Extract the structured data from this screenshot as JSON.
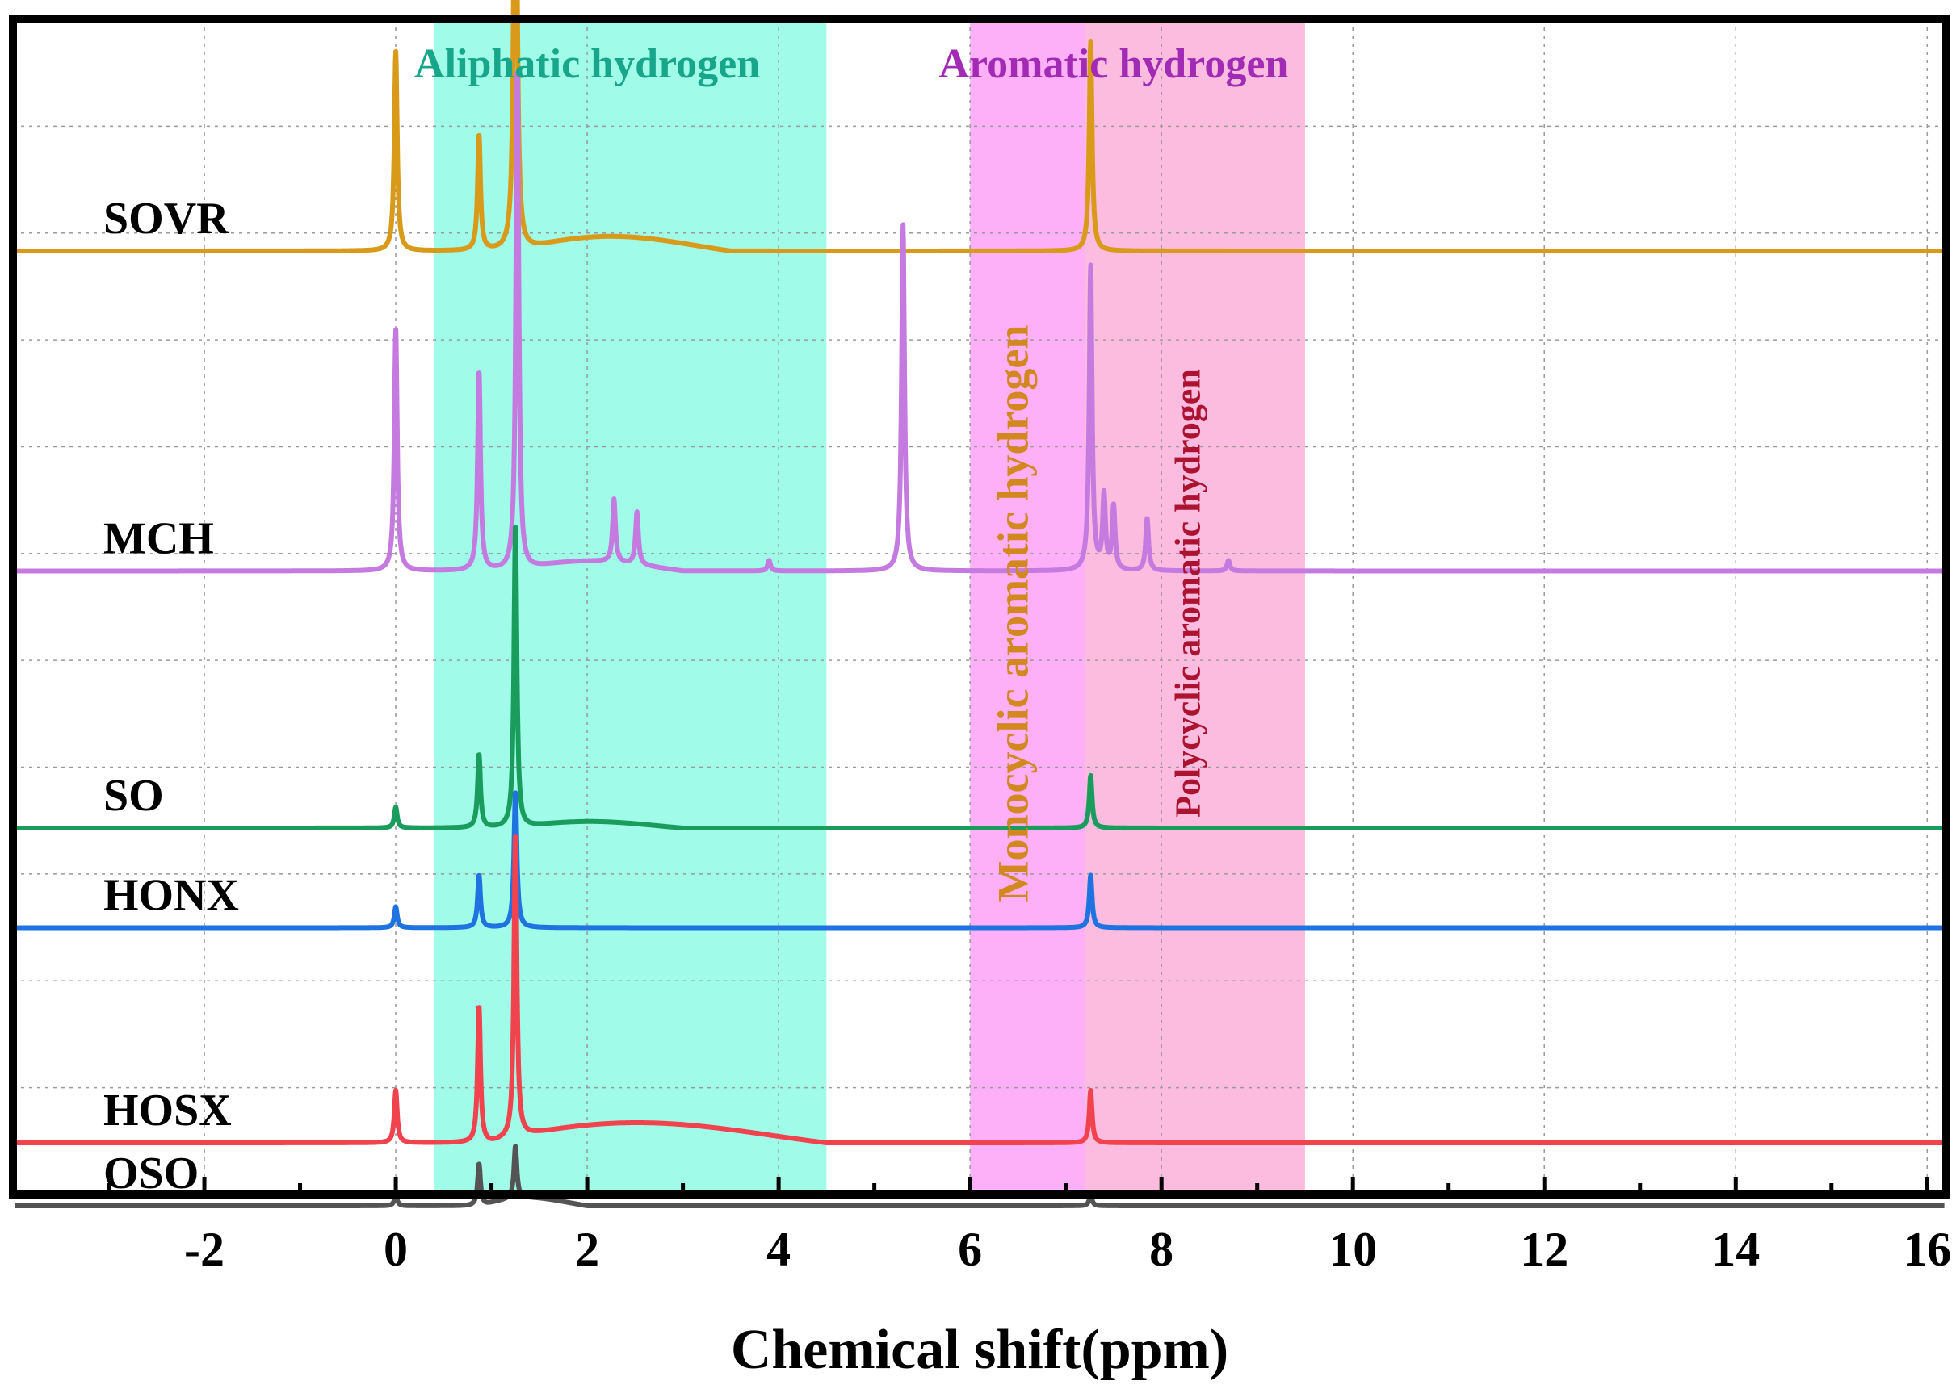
{
  "chart_data": {
    "type": "line",
    "title": "",
    "xlabel": "Chemical shift(ppm)",
    "ylabel": "",
    "xlim": [
      -4.0,
      16.2
    ],
    "x_ticks": [
      -2,
      0,
      2,
      4,
      6,
      8,
      10,
      12,
      14,
      16
    ],
    "x_minor_ticks": [
      -3,
      -1,
      1,
      3,
      5,
      7,
      9,
      11,
      13,
      15
    ],
    "grid": true,
    "regions": [
      {
        "name": "aliphatic",
        "label": "Aliphatic hydrogen",
        "from": 0.4,
        "to": 4.5,
        "fill": "#a0fbe8",
        "label_color": "#17a68a",
        "label_x": 2.0,
        "orientation": "horizontal"
      },
      {
        "name": "monocyclic",
        "label": "Monocyclic aromatic hydrogen",
        "from": 6.0,
        "to": 7.2,
        "fill": "#fdb0f8",
        "label_color": "#d2881e",
        "label_x": 6.6,
        "orientation": "vertical"
      },
      {
        "name": "polycyclic",
        "label": "Polycyclic aromatic hydrogen",
        "from": 7.2,
        "to": 9.5,
        "fill": "#fcbce0",
        "label_color": "#ac1330",
        "label_x": 8.4,
        "orientation": "vertical"
      }
    ],
    "header_labels": [
      {
        "name": "aromatic",
        "label": "Aromatic hydrogen",
        "x": 7.5,
        "color": "#a22bb5"
      }
    ],
    "series": [
      {
        "name": "SOVR",
        "color": "#d99a1a",
        "baseline": 0.78,
        "peaks": [
          {
            "x": 0.0,
            "h": 0.19
          },
          {
            "x": 0.87,
            "h": 0.11
          },
          {
            "x": 1.25,
            "h": 0.55
          },
          {
            "x": 7.26,
            "h": 0.2
          }
        ],
        "bumps": [
          {
            "x1": 1.3,
            "x2": 3.5,
            "h": 0.018
          }
        ]
      },
      {
        "name": "MCH",
        "color": "#c57ae0",
        "baseline": 0.475,
        "peaks": [
          {
            "x": 0.0,
            "h": 0.23
          },
          {
            "x": 0.87,
            "h": 0.19
          },
          {
            "x": 1.27,
            "h": 0.48
          },
          {
            "x": 2.28,
            "h": 0.06
          },
          {
            "x": 2.52,
            "h": 0.05
          },
          {
            "x": 5.3,
            "h": 0.33
          },
          {
            "x": 7.26,
            "h": 0.29
          },
          {
            "x": 7.4,
            "h": 0.07
          },
          {
            "x": 7.5,
            "h": 0.06
          },
          {
            "x": 7.85,
            "h": 0.05
          },
          {
            "x": 3.9,
            "h": 0.01
          },
          {
            "x": 8.7,
            "h": 0.01
          }
        ],
        "bumps": [
          {
            "x1": 1.3,
            "x2": 3.0,
            "h": 0.012
          }
        ]
      },
      {
        "name": "SO",
        "color": "#1a9c5c",
        "baseline": 0.23,
        "peaks": [
          {
            "x": 0.0,
            "h": 0.02
          },
          {
            "x": 0.87,
            "h": 0.07
          },
          {
            "x": 1.25,
            "h": 0.29
          },
          {
            "x": 7.26,
            "h": 0.05
          }
        ],
        "bumps": [
          {
            "x1": 1.3,
            "x2": 3.0,
            "h": 0.008
          }
        ]
      },
      {
        "name": "HONX",
        "color": "#1e73e0",
        "baseline": 0.135,
        "peaks": [
          {
            "x": 0.0,
            "h": 0.02
          },
          {
            "x": 0.87,
            "h": 0.05
          },
          {
            "x": 1.25,
            "h": 0.13
          },
          {
            "x": 7.26,
            "h": 0.05
          }
        ],
        "bumps": []
      },
      {
        "name": "HOSX",
        "color": "#f0434e",
        "baseline": -0.07,
        "peaks": [
          {
            "x": 0.0,
            "h": 0.05
          },
          {
            "x": 0.87,
            "h": 0.13
          },
          {
            "x": 1.25,
            "h": 0.29
          },
          {
            "x": 7.26,
            "h": 0.05
          }
        ],
        "bumps": [
          {
            "x1": 1.0,
            "x2": 4.5,
            "h": 0.025
          }
        ]
      },
      {
        "name": "OSO",
        "color": "#545454",
        "baseline": -0.13,
        "peaks": [
          {
            "x": 0.0,
            "h": 0.01
          },
          {
            "x": 0.87,
            "h": 0.04
          },
          {
            "x": 1.25,
            "h": 0.05
          },
          {
            "x": 7.26,
            "h": 0.01
          }
        ],
        "bumps": [
          {
            "x1": 0.9,
            "x2": 2.0,
            "h": 0.01
          }
        ]
      }
    ]
  }
}
